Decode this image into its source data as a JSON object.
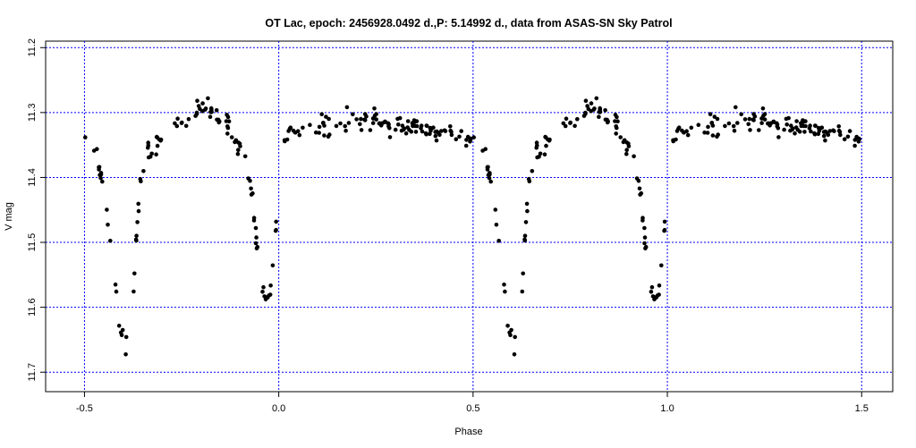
{
  "chart_data": {
    "type": "scatter",
    "title": "OT Lac, epoch: 2456928.0492 d.,P: 5.14992 d., data from ASAS-SN Sky Patrol",
    "xlabel": "Phase",
    "ylabel": "V mag",
    "xlim": [
      -0.6,
      1.58
    ],
    "ylim": [
      11.73,
      11.19
    ],
    "y_inverted": true,
    "grid": true,
    "grid_color": "#0000ff",
    "point_color": "#000000",
    "x_ticks": [
      -0.5,
      0.0,
      0.5,
      1.0,
      1.5
    ],
    "x_tick_labels": [
      "-0.5",
      "0.0",
      "0.5",
      "1.0",
      "1.5"
    ],
    "y_ticks": [
      11.2,
      11.3,
      11.4,
      11.5,
      11.6,
      11.7
    ],
    "y_tick_labels": [
      "11.2",
      "11.3",
      "11.4",
      "11.5",
      "11.6",
      "11.7"
    ],
    "period_wrap": 1.0,
    "x_range": [
      -0.5,
      1.5
    ],
    "light_curve": [
      [
        0.0,
        11.325
      ],
      [
        0.04,
        11.335
      ],
      [
        0.08,
        11.33
      ],
      [
        0.12,
        11.32
      ],
      [
        0.16,
        11.315
      ],
      [
        0.2,
        11.31
      ],
      [
        0.24,
        11.312
      ],
      [
        0.28,
        11.315
      ],
      [
        0.32,
        11.318
      ],
      [
        0.36,
        11.322
      ],
      [
        0.4,
        11.327
      ],
      [
        0.44,
        11.332
      ],
      [
        0.48,
        11.337
      ],
      [
        0.51,
        11.34
      ],
      [
        0.53,
        11.36
      ],
      [
        0.545,
        11.4
      ],
      [
        0.555,
        11.45
      ],
      [
        0.565,
        11.5
      ],
      [
        0.575,
        11.55
      ],
      [
        0.585,
        11.6
      ],
      [
        0.595,
        11.64
      ],
      [
        0.605,
        11.66
      ],
      [
        0.615,
        11.64
      ],
      [
        0.625,
        11.58
      ],
      [
        0.635,
        11.48
      ],
      [
        0.645,
        11.4
      ],
      [
        0.66,
        11.36
      ],
      [
        0.7,
        11.34
      ],
      [
        0.74,
        11.32
      ],
      [
        0.78,
        11.3
      ],
      [
        0.81,
        11.29
      ],
      [
        0.84,
        11.3
      ],
      [
        0.87,
        11.32
      ],
      [
        0.9,
        11.35
      ],
      [
        0.915,
        11.37
      ],
      [
        0.93,
        11.42
      ],
      [
        0.945,
        11.52
      ],
      [
        0.96,
        11.575
      ],
      [
        0.975,
        11.585
      ],
      [
        0.985,
        11.55
      ],
      [
        0.995,
        11.47
      ],
      [
        1.0,
        11.325
      ]
    ],
    "scatter_sigma": 0.012,
    "n_points": 230
  }
}
